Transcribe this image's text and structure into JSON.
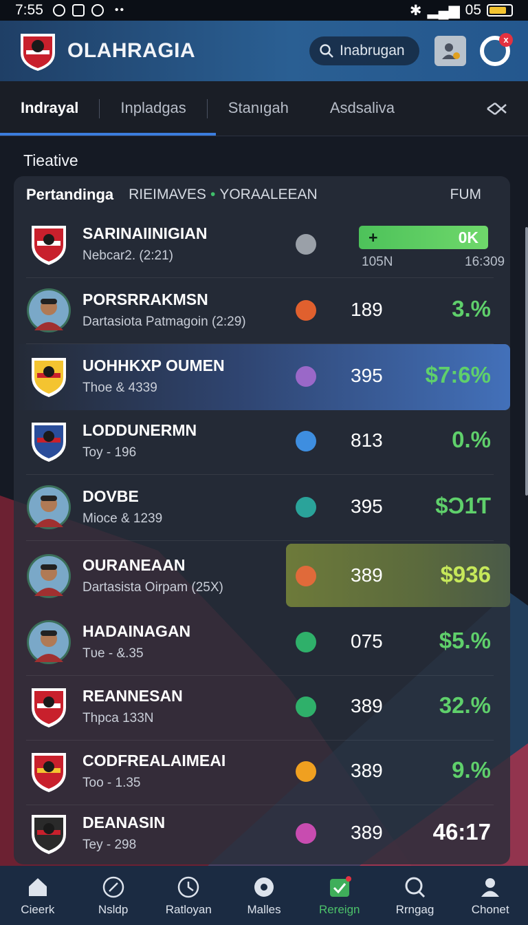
{
  "status_bar": {
    "time": "7:55",
    "signal_text": "05"
  },
  "header": {
    "app_title": "OLAHRAGIA",
    "search_placeholder": "Inabrugan",
    "notif_badge": "x"
  },
  "tabs": [
    {
      "label": "Indrayal",
      "active": true
    },
    {
      "label": "Inpladgas",
      "active": false
    },
    {
      "label": "Stanıgah",
      "active": false
    },
    {
      "label": "Asdsaliva",
      "active": false
    }
  ],
  "section_title": "Tieative",
  "panel_header": {
    "title": "Pertandinga",
    "col1": "RIEIMAVES",
    "col2": "YORAALEEAN",
    "col3": "FUM"
  },
  "rows": [
    {
      "name": "SARINAIINIGIAN",
      "sub": "Nebcar2. (2:21)",
      "badge_sign": "+",
      "badge_value": "0K",
      "left_val": "105N",
      "right_val": "16:309",
      "icon_color": "#9aa0a8",
      "avatar": "crest"
    },
    {
      "name": "PORSRRAKMSN",
      "sub": "Dartasiota Patmagoin (2:29)",
      "stat": "189",
      "pct": "3.%",
      "icon_color": "#e0602e",
      "avatar": "player"
    },
    {
      "name": "UOHHKXP OUMEN",
      "sub": "Thoe & 4339",
      "stat": "395",
      "pct": "$7:6%",
      "icon_color": "#9a68c8",
      "avatar": "crest-yellow"
    },
    {
      "name": "LODDUNERMN",
      "sub": "Toy - 196",
      "stat": "813",
      "pct": "0.%",
      "icon_color": "#3e8ee0",
      "avatar": "crest-blue"
    },
    {
      "name": "DOVBE",
      "sub": "Mioce & 1239",
      "stat": "395",
      "pct": "$Ɔ1Ƭ",
      "icon_color": "#2aa39a",
      "avatar": "player"
    },
    {
      "name": "OURANEAAN",
      "sub": "Dartasista Oirpam (25X)",
      "stat": "389",
      "pct": "$936",
      "icon_color": "#e06a3a",
      "avatar": "player"
    },
    {
      "name": "HADAINAGAN",
      "sub": "Tᴜe - &.35",
      "stat": "075",
      "pct": "$5.%",
      "icon_color": "#2fb06a",
      "avatar": "player"
    },
    {
      "name": "REANNESAN",
      "sub": "Thpca 133N",
      "stat": "389",
      "pct": "32.%",
      "icon_color": "#2fb06a",
      "avatar": "crest-red"
    },
    {
      "name": "CODFREALAIMEAI",
      "sub": "Too - 1.35",
      "stat": "389",
      "pct": "9.%",
      "icon_color": "#f0a020",
      "avatar": "crest-redwhite"
    },
    {
      "name": "DEANASIN",
      "sub": "Tey - 298",
      "stat": "389",
      "pct": "46:17",
      "icon_color": "#c84cb0",
      "avatar": "crest-dark"
    }
  ],
  "bottom_nav": [
    {
      "label": "Cieerk",
      "icon": "home-icon"
    },
    {
      "label": "Nsldp",
      "icon": "compass-icon"
    },
    {
      "label": "Ratloyan",
      "icon": "clock-icon"
    },
    {
      "label": "Malles",
      "icon": "ball-icon"
    },
    {
      "label": "Rereign",
      "icon": "check-icon",
      "active": true
    },
    {
      "label": "Rrngag",
      "icon": "search-person-icon"
    },
    {
      "label": "Chonet",
      "icon": "user-icon"
    }
  ],
  "colors": {
    "accent": "#3b7ddd",
    "positive": "#5fd06b",
    "header": "#2a5f93",
    "nav_bg": "#1b2b42"
  }
}
